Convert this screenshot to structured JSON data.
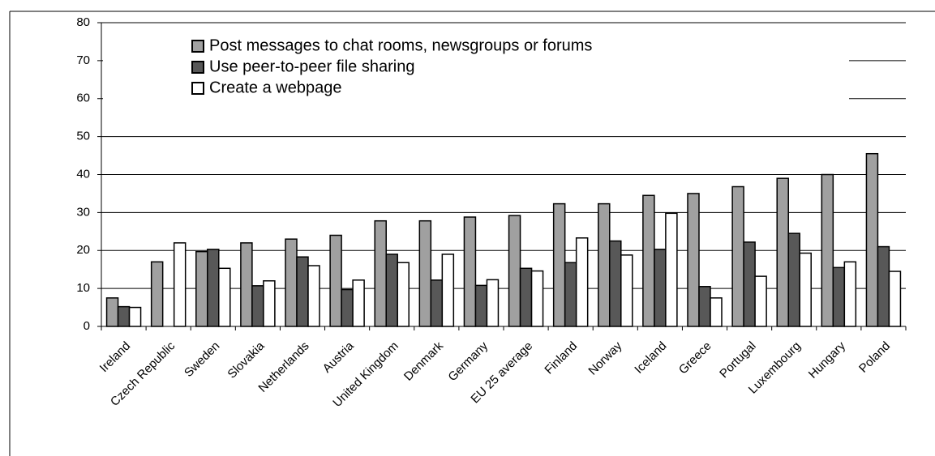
{
  "chart_data": {
    "type": "bar",
    "categories": [
      "Ireland",
      "Czech Republic",
      "Sweden",
      "Slovakia",
      "Netherlands",
      "Austria",
      "United Kingdom",
      "Denmark",
      "Germany",
      "EU 25 average",
      "Finland",
      "Norway",
      "Iceland",
      "Greece",
      "Portugal",
      "Luxembourg",
      "Hungary",
      "Poland"
    ],
    "series": [
      {
        "name": "Post messages to chat rooms, newsgroups or forums",
        "color": "#a0a0a0",
        "values": [
          7.5,
          17,
          19.7,
          22,
          23,
          24,
          27.8,
          27.8,
          28.8,
          29.2,
          32.3,
          32.3,
          34.5,
          35,
          36.8,
          39,
          40,
          45.5
        ]
      },
      {
        "name": "Use peer-to-peer file sharing",
        "color": "#585858",
        "values": [
          5.2,
          null,
          20.3,
          10.7,
          18.3,
          9.7,
          19,
          12.2,
          10.8,
          15.3,
          16.8,
          22.5,
          20.3,
          10.5,
          22.2,
          24.5,
          15.5,
          21
        ]
      },
      {
        "name": "Create a webpage",
        "color": "#ffffff",
        "values": [
          5,
          22,
          15.3,
          12,
          16,
          12.2,
          16.8,
          19,
          12.3,
          14.6,
          23.3,
          18.8,
          29.8,
          7.5,
          13.2,
          19.3,
          17,
          14.5
        ]
      }
    ],
    "ylim": [
      0,
      80
    ],
    "yticks": [
      0,
      10,
      20,
      30,
      40,
      50,
      60,
      70,
      80
    ],
    "grid": true
  }
}
